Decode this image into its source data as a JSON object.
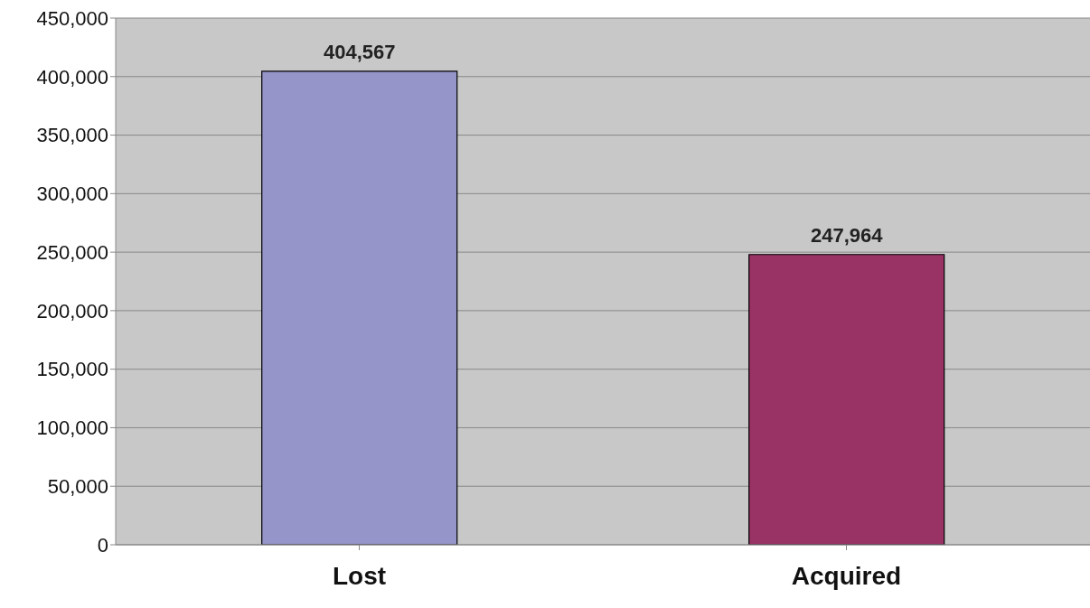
{
  "chart_data": {
    "type": "bar",
    "categories": [
      "Lost",
      "Acquired"
    ],
    "values": [
      404567,
      247964
    ],
    "value_labels": [
      "404,567",
      "247,964"
    ],
    "colors": [
      "#9595c9",
      "#993366"
    ],
    "ylim": [
      0,
      450000
    ],
    "yticks": [
      {
        "value": 0,
        "label": "0"
      },
      {
        "value": 50000,
        "label": "50,000"
      },
      {
        "value": 100000,
        "label": "100,000"
      },
      {
        "value": 150000,
        "label": "150,000"
      },
      {
        "value": 200000,
        "label": "200,000"
      },
      {
        "value": 250000,
        "label": "250,000"
      },
      {
        "value": 300000,
        "label": "300,000"
      },
      {
        "value": 350000,
        "label": "350,000"
      },
      {
        "value": 400000,
        "label": "400,000"
      },
      {
        "value": 450000,
        "label": "450,000"
      }
    ],
    "grid": "y"
  }
}
